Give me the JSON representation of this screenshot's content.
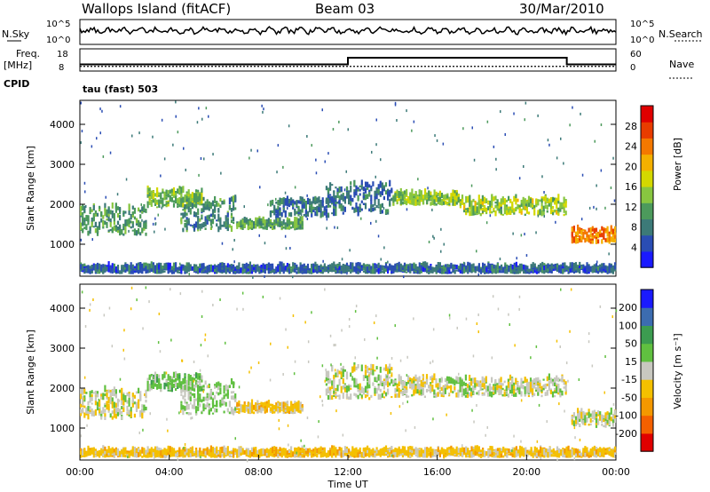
{
  "header": {
    "radar": "Wallops Island (fitACF)",
    "beam": "Beam 03",
    "date": "30/Mar/2010"
  },
  "panels": {
    "nsky_label": "N.Sky",
    "nsearch_label": "N.Search",
    "nsky_ticks": [
      "10^5",
      "10^0"
    ],
    "nsearch_ticks": [
      "10^5",
      "10^0"
    ],
    "freq_label": "Freq.",
    "freq_unit": "[MHz]",
    "freq_ticks": [
      "18",
      "8"
    ],
    "nave_label": "Nave",
    "nave_ticks": [
      "60",
      "0"
    ],
    "cpid_label": "CPID",
    "cpid_text": "tau (fast) 503"
  },
  "chart_data": [
    {
      "type": "heatmap",
      "name": "power",
      "ylabel": "Slant Range [km]",
      "ylim": [
        200,
        4600
      ],
      "yticks": [
        1000,
        2000,
        3000,
        4000
      ],
      "colorbar": {
        "label": "Power [dB]",
        "ticks": [
          4,
          8,
          12,
          16,
          20,
          24,
          28
        ],
        "colors": [
          "#1a1aff",
          "#2a4db4",
          "#3c7a78",
          "#4c9a5c",
          "#88c640",
          "#d4d800",
          "#f4b000",
          "#f47800",
          "#e83c00",
          "#e00000"
        ]
      },
      "segments": [
        {
          "t0": 0.0,
          "t1": 3.0,
          "r0": 1200,
          "r1": 1900,
          "p": 9
        },
        {
          "t0": 3.0,
          "t1": 5.5,
          "r0": 1900,
          "r1": 2300,
          "p": 12
        },
        {
          "t0": 4.5,
          "t1": 7.0,
          "r0": 1300,
          "r1": 2100,
          "p": 8
        },
        {
          "t0": 7.0,
          "t1": 10.0,
          "r0": 1350,
          "r1": 1550,
          "p": 10
        },
        {
          "t0": 8.5,
          "t1": 11.5,
          "r0": 1650,
          "r1": 2050,
          "p": 6
        },
        {
          "t0": 11.0,
          "t1": 14.0,
          "r0": 1700,
          "r1": 2500,
          "p": 6
        },
        {
          "t0": 14.0,
          "t1": 17.0,
          "r0": 1950,
          "r1": 2250,
          "p": 13
        },
        {
          "t0": 17.0,
          "t1": 21.8,
          "r0": 1700,
          "r1": 2100,
          "p": 14
        },
        {
          "t0": 22.0,
          "t1": 24.0,
          "r0": 1000,
          "r1": 1350,
          "p": 22
        },
        {
          "t0": 0.0,
          "t1": 24.0,
          "r0": 250,
          "r1": 400,
          "p": 5
        }
      ]
    },
    {
      "type": "heatmap",
      "name": "velocity",
      "xlabel": "Time UT",
      "ylabel": "Slant Range [km]",
      "ylim": [
        200,
        4600
      ],
      "yticks": [
        1000,
        2000,
        3000,
        4000
      ],
      "xlim": [
        0,
        24
      ],
      "xticks": [
        "00:00",
        "04:00",
        "08:00",
        "12:00",
        "16:00",
        "20:00",
        "00:00"
      ],
      "colorbar": {
        "label": "Velocity [m s⁻¹]",
        "ticks": [
          -200,
          -100,
          -50,
          -15,
          15,
          50,
          100,
          200
        ],
        "colors": [
          "#e00000",
          "#f46000",
          "#f49800",
          "#f4c000",
          "#c8c8c0",
          "#60c040",
          "#3c9c50",
          "#3c6cb0",
          "#1a1aff"
        ]
      },
      "segments": [
        {
          "t0": 0.0,
          "t1": 3.0,
          "r0": 1200,
          "r1": 1900,
          "v": 0
        },
        {
          "t0": 3.0,
          "t1": 5.5,
          "r0": 1900,
          "r1": 2300,
          "v": 30
        },
        {
          "t0": 4.5,
          "t1": 7.0,
          "r0": 1300,
          "r1": 2100,
          "v": 20
        },
        {
          "t0": 7.0,
          "t1": 10.0,
          "r0": 1350,
          "r1": 1550,
          "v": -30
        },
        {
          "t0": 11.0,
          "t1": 14.0,
          "r0": 1700,
          "r1": 2500,
          "v": 0
        },
        {
          "t0": 14.0,
          "t1": 21.8,
          "r0": 1750,
          "r1": 2200,
          "v": 0
        },
        {
          "t0": 22.0,
          "t1": 24.0,
          "r0": 1000,
          "r1": 1350,
          "v": 0
        },
        {
          "t0": 0.0,
          "t1": 24.0,
          "r0": 250,
          "r1": 400,
          "v": -30
        }
      ]
    }
  ],
  "timeseries": {
    "freq_step": {
      "t_change_up": 12.0,
      "t_change_down": 21.8,
      "low": 11,
      "high": 14
    },
    "nave_level": 3
  }
}
